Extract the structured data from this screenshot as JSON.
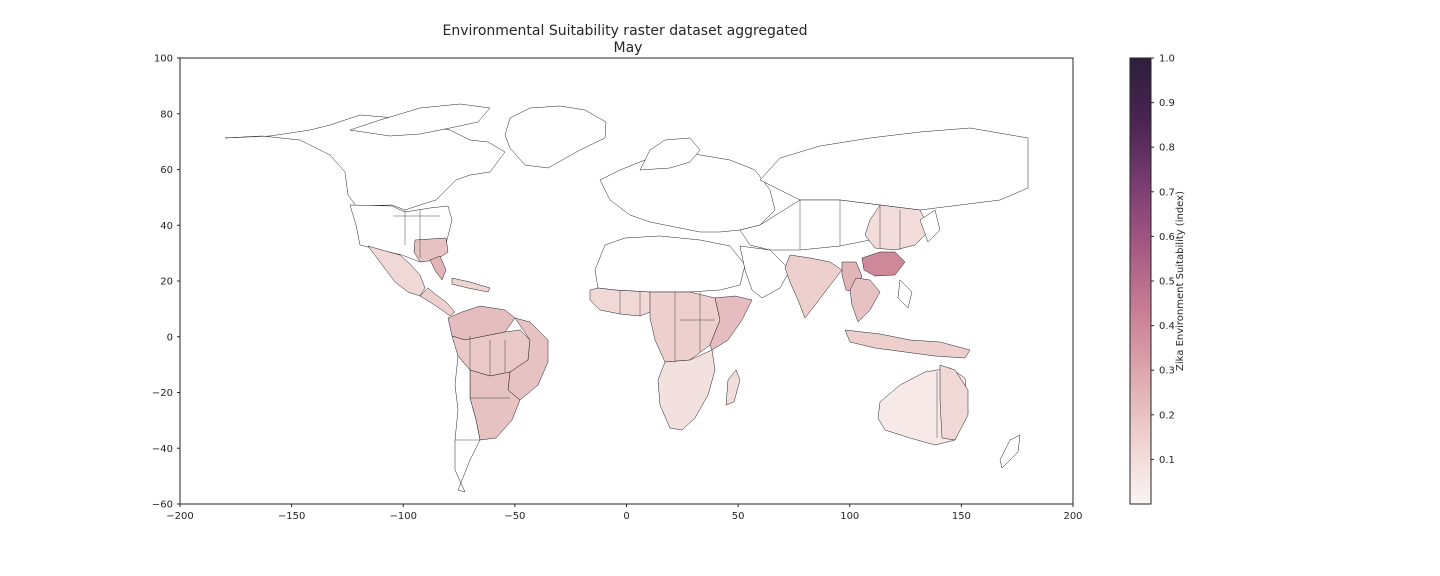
{
  "chart_data": {
    "type": "heatmap",
    "title_lines": [
      "Environmental Suitability raster dataset aggregated",
      "May"
    ],
    "xlim": [
      -200,
      200
    ],
    "ylim": [
      -60,
      100
    ],
    "x_ticks": [
      -200,
      -150,
      -100,
      -50,
      0,
      50,
      100,
      150,
      200
    ],
    "x_tick_labels": [
      "−200",
      "−150",
      "−100",
      "−50",
      "0",
      "50",
      "100",
      "150",
      "200"
    ],
    "y_ticks": [
      -60,
      -40,
      -20,
      0,
      20,
      40,
      60,
      80,
      100
    ],
    "y_tick_labels": [
      "−60",
      "−40",
      "−20",
      "0",
      "20",
      "40",
      "60",
      "80",
      "100"
    ],
    "grid": false,
    "colorbar": {
      "label": "Zika Environment Suitability (index)",
      "range": [
        0,
        1
      ],
      "ticks": [
        0.1,
        0.2,
        0.3,
        0.4,
        0.5,
        0.6,
        0.7,
        0.8,
        0.9,
        1.0
      ],
      "tick_labels": [
        "0.1",
        "0.2",
        "0.3",
        "0.4",
        "0.5",
        "0.6",
        "0.7",
        "0.8",
        "0.9",
        "1.0"
      ],
      "colors": [
        "#faf5f4",
        "#eed2d0",
        "#ddaab0",
        "#c97f95",
        "#a65a84",
        "#7a3d70",
        "#4a2550",
        "#2d1e3e"
      ],
      "position": "right"
    },
    "regions": [
      {
        "region": "southeast-usa",
        "value": 0.2
      },
      {
        "region": "florida",
        "value": 0.25
      },
      {
        "region": "mexico",
        "value": 0.12
      },
      {
        "region": "central-america",
        "value": 0.15
      },
      {
        "region": "caribbean",
        "value": 0.14
      },
      {
        "region": "colombia-venezuela",
        "value": 0.22
      },
      {
        "region": "amazon-basin",
        "value": 0.18
      },
      {
        "region": "northeast-brazil",
        "value": 0.2
      },
      {
        "region": "southern-brazil-paraguay",
        "value": 0.2
      },
      {
        "region": "west-africa",
        "value": 0.12
      },
      {
        "region": "central-africa",
        "value": 0.15
      },
      {
        "region": "east-africa",
        "value": 0.22
      },
      {
        "region": "southern-africa",
        "value": 0.08
      },
      {
        "region": "madagascar",
        "value": 0.1
      },
      {
        "region": "india",
        "value": 0.15
      },
      {
        "region": "bangladesh-myanmar",
        "value": 0.25
      },
      {
        "region": "southern-china",
        "value": 0.4
      },
      {
        "region": "eastern-china",
        "value": 0.1
      },
      {
        "region": "southeast-asia",
        "value": 0.2
      },
      {
        "region": "indonesia-png",
        "value": 0.15
      },
      {
        "region": "northern-australia",
        "value": 0.05
      },
      {
        "region": "queensland",
        "value": 0.12
      }
    ]
  }
}
